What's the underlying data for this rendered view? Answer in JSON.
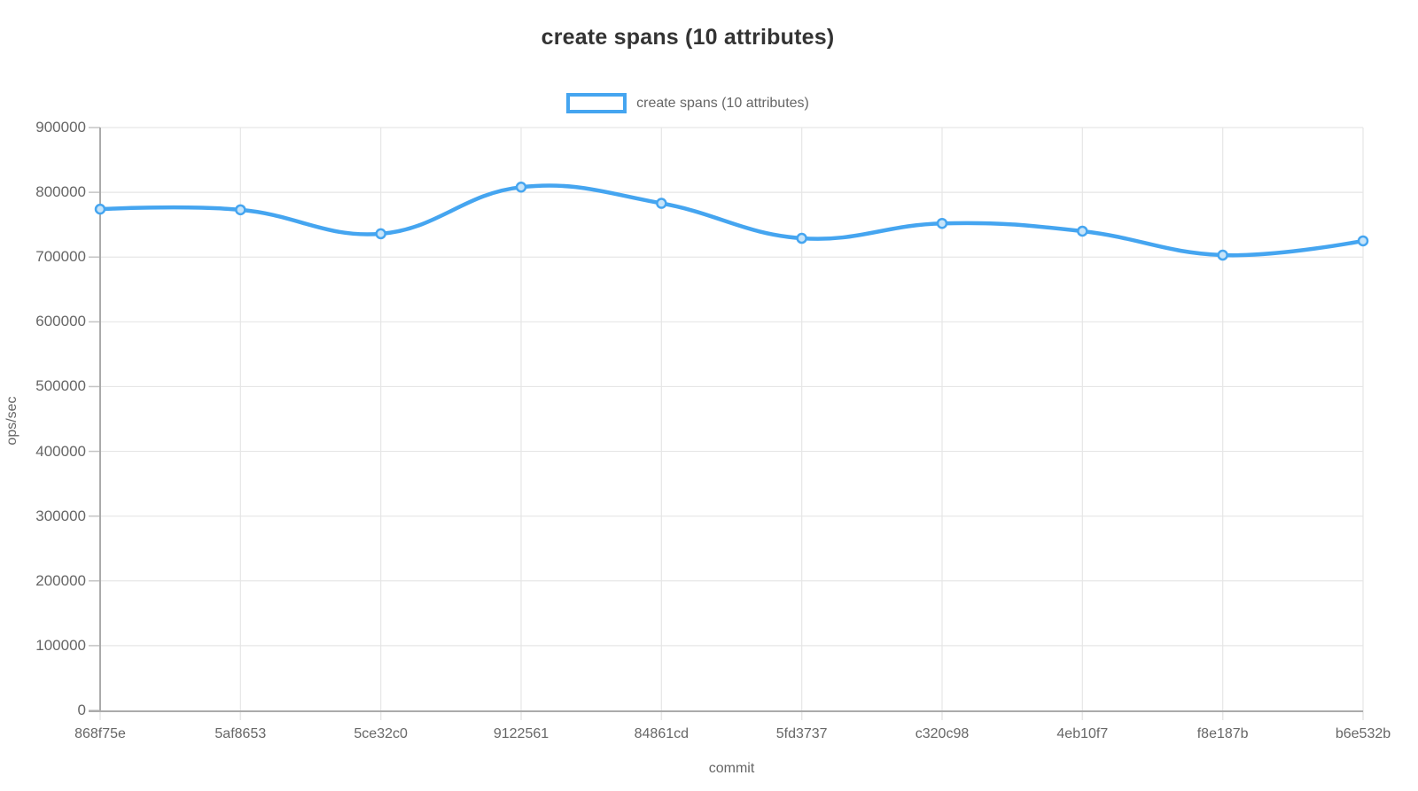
{
  "title": "create spans (10 attributes)",
  "legend": {
    "label": "create spans (10 attributes)",
    "swatch_color": "#45a5f0"
  },
  "colors": {
    "line": "#45a5f0",
    "point_fill": "#c7e4f9",
    "grid": "#e6e6e6",
    "tick_mark": "#c4c4c4",
    "axis_line": "#ababab",
    "tick_text": "#666666",
    "title_text": "#333333",
    "background": "#ffffff"
  },
  "x_axis": {
    "title": "commit",
    "categories": [
      "868f75e",
      "5af8653",
      "5ce32c0",
      "9122561",
      "84861cd",
      "5fd3737",
      "c320c98",
      "4eb10f7",
      "f8e187b",
      "b6e532b"
    ]
  },
  "y_axis": {
    "title": "ops/sec",
    "min": 0,
    "max": 900000,
    "step": 100000,
    "tick_labels": [
      "0",
      "100000",
      "200000",
      "300000",
      "400000",
      "500000",
      "600000",
      "700000",
      "800000",
      "900000"
    ]
  },
  "chart_data": {
    "type": "line",
    "title": "create spans (10 attributes)",
    "xlabel": "commit",
    "ylabel": "ops/sec",
    "categories": [
      "868f75e",
      "5af8653",
      "5ce32c0",
      "9122561",
      "84861cd",
      "5fd3737",
      "c320c98",
      "4eb10f7",
      "f8e187b",
      "b6e532b"
    ],
    "series": [
      {
        "name": "create spans (10 attributes)",
        "values": [
          774000,
          773000,
          736000,
          808000,
          783000,
          729000,
          752000,
          740000,
          703000,
          725000
        ]
      }
    ],
    "ylim": [
      0,
      900000
    ],
    "ytick_step": 100000,
    "grid": true,
    "legend_position": "top",
    "smooth": true,
    "line_color": "#45a5f0"
  }
}
